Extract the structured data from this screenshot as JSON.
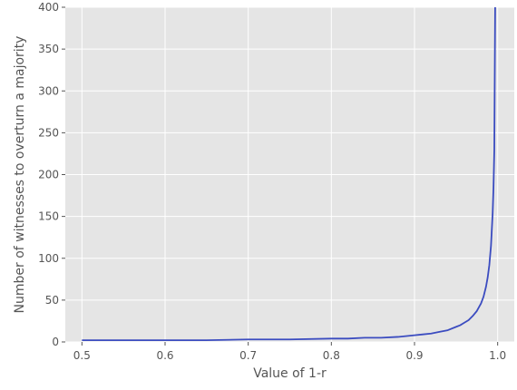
{
  "chart_data": {
    "type": "line",
    "title": "",
    "xlabel": "Value of 1-r",
    "ylabel": "Number of witnesses to overturn a majority",
    "xlim": [
      0.48,
      1.02
    ],
    "ylim": [
      0,
      400
    ],
    "xticks": [
      0.5,
      0.6,
      0.7,
      0.8,
      0.9,
      1.0
    ],
    "xtick_labels": [
      "0.5",
      "0.6",
      "0.7",
      "0.8",
      "0.9",
      "1.0"
    ],
    "yticks": [
      0,
      50,
      100,
      150,
      200,
      250,
      300,
      350,
      400
    ],
    "ytick_labels": [
      "0",
      "50",
      "100",
      "150",
      "200",
      "250",
      "300",
      "350",
      "400"
    ],
    "grid": true,
    "background": "#e5e5e5",
    "grid_color": "#ffffff",
    "series": [
      {
        "color": "#3b4cc0",
        "x": [
          0.5,
          0.55,
          0.6,
          0.65,
          0.7,
          0.75,
          0.8,
          0.82,
          0.84,
          0.86,
          0.88,
          0.9,
          0.91,
          0.92,
          0.93,
          0.94,
          0.95,
          0.955,
          0.96,
          0.965,
          0.97,
          0.975,
          0.98,
          0.983,
          0.986,
          0.988,
          0.99,
          0.992,
          0.994,
          0.995,
          0.996,
          0.997
        ],
        "y": [
          2,
          2,
          2,
          2,
          3,
          3,
          4,
          4,
          5,
          5,
          6,
          8,
          9,
          10,
          12,
          14,
          18,
          20,
          23,
          26,
          31,
          37,
          46,
          54,
          66,
          77,
          92,
          115,
          154,
          184,
          230,
          400
        ]
      }
    ]
  }
}
